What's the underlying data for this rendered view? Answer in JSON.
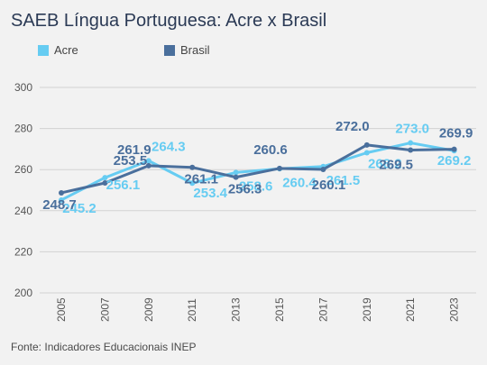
{
  "title": "SAEB Língua Portuguesa: Acre x Brasil",
  "source": "Fonte: Indicadores Educacionais INEP",
  "legend": [
    {
      "label": "Acre",
      "color": "#66ccf2"
    },
    {
      "label": "Brasil",
      "color": "#4a6f9c"
    }
  ],
  "chart_data": {
    "type": "line",
    "title": "SAEB Língua Portuguesa: Acre x Brasil",
    "xlabel": "",
    "ylabel": "",
    "x": [
      "2005",
      "2007",
      "2009",
      "2011",
      "2013",
      "2015",
      "2017",
      "2019",
      "2021",
      "2023"
    ],
    "ylim": [
      200,
      300
    ],
    "yticks": [
      200,
      220,
      240,
      260,
      280,
      300
    ],
    "grid": true,
    "legend_position": "top-left",
    "series": [
      {
        "name": "Acre",
        "color": "#66ccf2",
        "values": [
          245.2,
          256.1,
          264.3,
          253.4,
          258.6,
          260.4,
          261.5,
          268.2,
          273.0,
          269.2
        ],
        "labels": [
          "245.2",
          "256.1",
          "264.3",
          "253.4",
          "258.6",
          "260.4",
          "261.5",
          "268.2",
          "273.0",
          "269.2"
        ]
      },
      {
        "name": "Brasil",
        "color": "#4a6f9c",
        "values": [
          248.7,
          253.5,
          261.9,
          261.1,
          256.3,
          260.6,
          260.1,
          272.0,
          269.5,
          269.9
        ],
        "labels": [
          "248.7",
          "253.5",
          "261.9",
          "261.1",
          "256.3",
          "260.6",
          "260.1",
          "272.0",
          "269.5",
          "269.9"
        ]
      }
    ]
  }
}
